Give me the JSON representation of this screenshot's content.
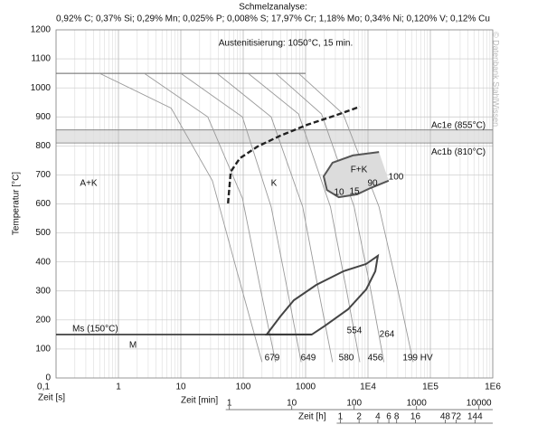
{
  "chart_data": {
    "type": "line",
    "title": "Schmelzanalyse:",
    "subtitle": "0,92% C; 0,37% Si; 0,29% Mn; 0,025% P; 0,008% S; 17,97% Cr; 1,18% Mo; 0,34% Ni; 0,120% V; 0,12% Cu",
    "annotation": "Austenitisierung: 1050°C, 15 min.",
    "watermark": "© Datenbank StahlWissen",
    "xlabel": "Zeit [s]",
    "ylabel": "Temperatur [°C]",
    "xscale": "log",
    "xlim": [
      0.1,
      1000000
    ],
    "xticks": [
      {
        "value": 0.1,
        "label": "0,1"
      },
      1,
      10,
      100,
      1000,
      {
        "value": 10000,
        "label": "1E4"
      },
      {
        "value": 100000,
        "label": "1E5"
      },
      {
        "value": 1000000,
        "label": "1E6"
      }
    ],
    "ylim": [
      0,
      1200
    ],
    "yticks": [
      0,
      100,
      200,
      300,
      400,
      500,
      600,
      700,
      800,
      900,
      1000,
      1100,
      1200
    ],
    "grid": true,
    "minor_grid": true,
    "x2label": "Zeit [min]",
    "x2ticks": [
      {
        "value": 60,
        "label": "1"
      },
      {
        "value": 600,
        "label": "10"
      },
      {
        "value": 6000,
        "label": "100"
      },
      {
        "value": 60000,
        "label": "1000"
      },
      {
        "value": 600000,
        "label": "10000"
      }
    ],
    "x3label": "Zeit [h]",
    "x3ticks": [
      {
        "value": 3600,
        "label": "1"
      },
      {
        "value": 7200,
        "label": "2"
      },
      {
        "value": 14400,
        "label": "4"
      },
      {
        "value": 21600,
        "label": "6"
      },
      {
        "value": 28800,
        "label": "8"
      },
      {
        "value": 57600,
        "label": "16"
      },
      {
        "value": 172800,
        "label": "48"
      },
      {
        "value": 259200,
        "label": "72"
      },
      {
        "value": 518400,
        "label": "144"
      }
    ],
    "hold_line": {
      "x": [
        0.1,
        1000
      ],
      "y": [
        1050,
        1050
      ],
      "color": "#666666"
    },
    "cooling_curves": {
      "color": "#9a9a9a",
      "curves": [
        {
          "x": [
            0.5,
            7,
            32,
            79,
            200
          ],
          "y": [
            1050,
            930,
            680,
            370,
            55
          ]
        },
        {
          "x": [
            2.6,
            27,
            97,
            190,
            330
          ],
          "y": [
            1050,
            900,
            620,
            305,
            55
          ]
        },
        {
          "x": [
            10,
            97,
            280,
            510,
            850
          ],
          "y": [
            1050,
            900,
            590,
            305,
            55
          ]
        },
        {
          "x": [
            38,
            280,
            900,
            1600,
            2700
          ],
          "y": [
            1050,
            900,
            590,
            305,
            55
          ]
        },
        {
          "x": [
            120,
            770,
            2500,
            4500,
            7400
          ],
          "y": [
            1050,
            910,
            590,
            305,
            55
          ]
        },
        {
          "x": [
            330,
            1800,
            6000,
            11000,
            18000
          ],
          "y": [
            1050,
            910,
            590,
            305,
            55
          ]
        },
        {
          "x": [
            770,
            4000,
            15000,
            30000,
            53000
          ],
          "y": [
            1050,
            910,
            590,
            305,
            55
          ]
        }
      ]
    },
    "dashed_line": {
      "x": [
        57,
        63,
        88,
        170,
        393,
        1070,
        2910,
        7400
      ],
      "y": [
        602,
        711,
        757,
        798,
        835,
        873,
        904,
        935
      ],
      "color": "#222222"
    },
    "regions": [
      {
        "label": "F+K",
        "x": [
          15000,
          5700,
          2700,
          1950,
          2200,
          3400,
          6700,
          11000,
          21500
        ],
        "y": [
          779,
          767,
          742,
          695,
          648,
          623,
          633,
          655,
          680
        ],
        "color": "#555555",
        "fill": "#dcdcdc"
      },
      {
        "x": [
          238,
          393,
          648,
          1490,
          4060,
          9350,
          14400,
          13100,
          9350,
          4800,
          2080,
          1260
        ],
        "y": [
          150,
          212,
          268,
          321,
          368,
          393,
          421,
          368,
          305,
          237,
          181,
          150
        ],
        "color": "#444444"
      }
    ],
    "critical_lines": [
      {
        "label": "Ac1e (855°C)",
        "value": 855
      },
      {
        "label": "Ac1b (810°C)",
        "value": 810
      }
    ],
    "band_fill": "#e4e4e4",
    "ms_line": {
      "label": "Ms (150°C)",
      "x": [
        0.1,
        1260
      ],
      "y": [
        150,
        150
      ],
      "color": "#333333"
    },
    "phase_labels": [
      "A+K",
      "K",
      "M"
    ],
    "percent_labels": [
      "10",
      "15",
      "90",
      "100"
    ],
    "hardness_labels": [
      "679",
      "649",
      "580",
      "456",
      "199 HV",
      "554",
      "264"
    ]
  }
}
